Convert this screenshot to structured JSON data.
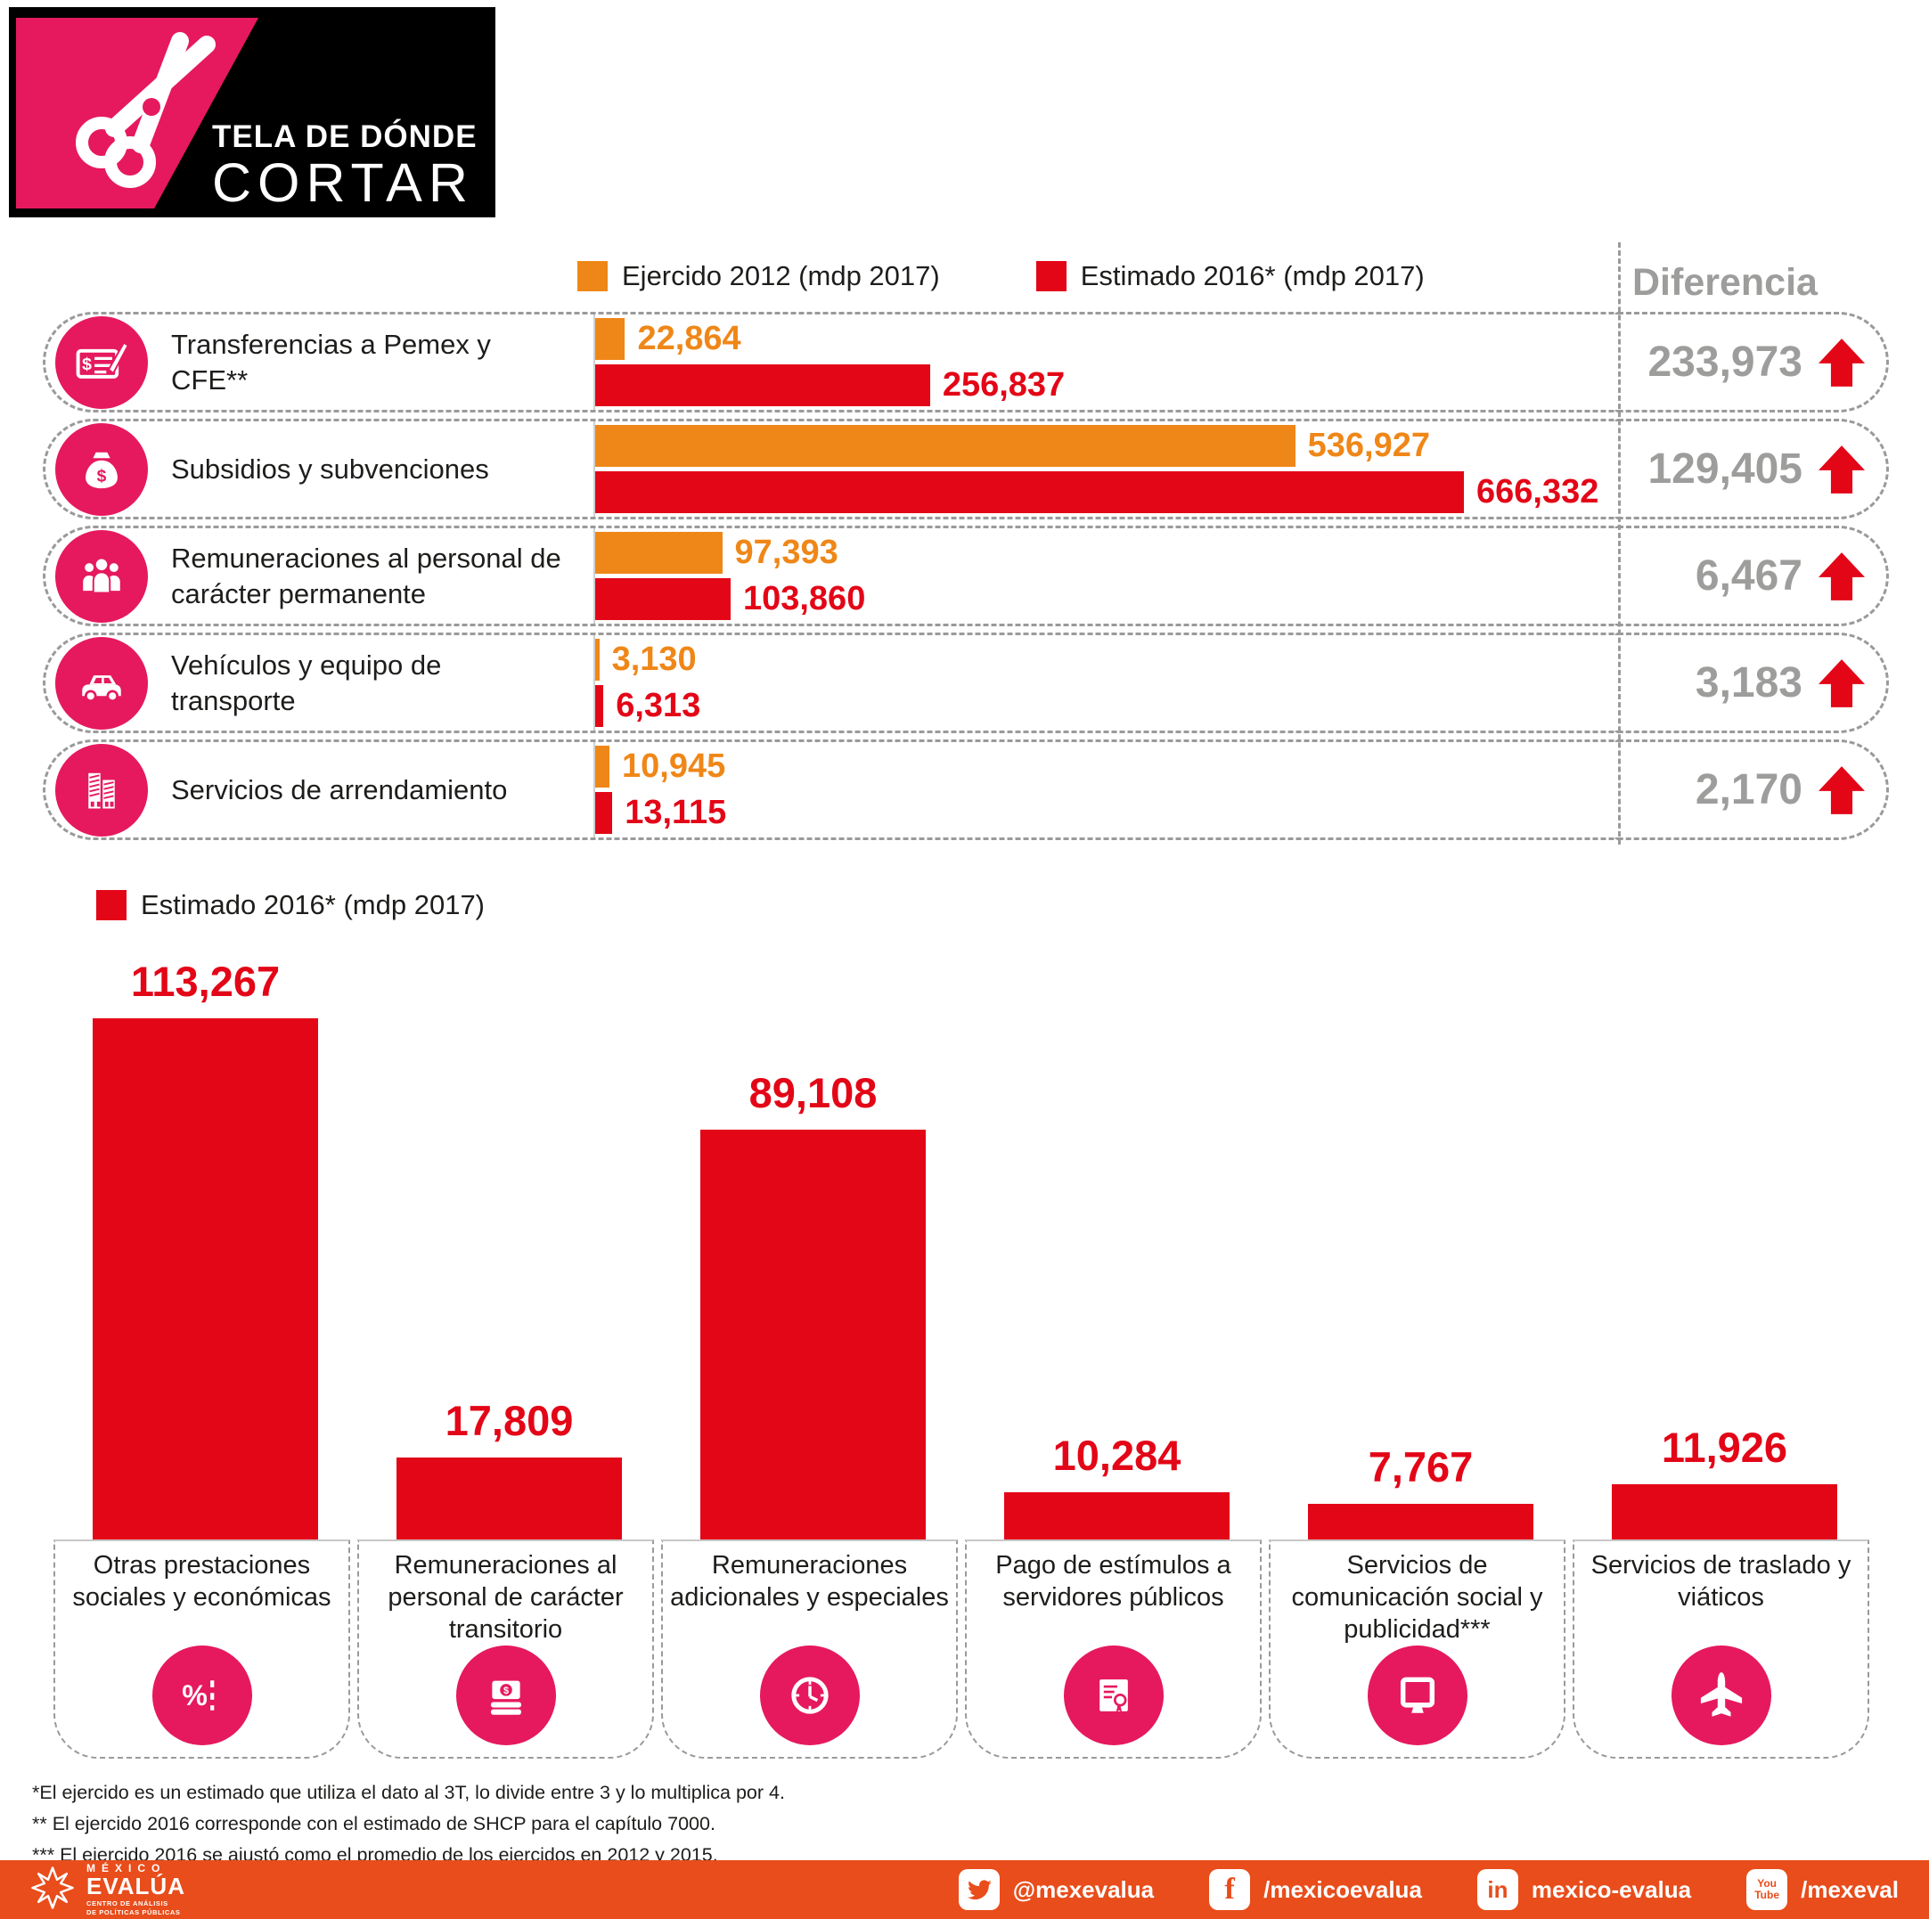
{
  "header": {
    "title_line1": "TELA DE DÓNDE",
    "title_line2": "CORTAR"
  },
  "colors": {
    "orange": "#EF8718",
    "red": "#E30617",
    "pink": "#E6195E",
    "gray_text": "#9D9D9C",
    "footer_orange": "#E84D1B",
    "logo_black": "#000000"
  },
  "top_chart": {
    "legend": [
      {
        "label": "Ejercido 2012 (mdp 2017)",
        "color": "#EF8718"
      },
      {
        "label": "Estimado 2016* (mdp 2017)",
        "color": "#E30617"
      }
    ],
    "diff_header": "Diferencia",
    "row_icons": [
      "payment-check-icon",
      "subsidy-icon",
      "personnel-icon",
      "vehicle-icon",
      "building-icon"
    ]
  },
  "bottom_chart": {
    "legend_label": "Estimado 2016* (mdp 2017)",
    "column_icons": [
      "percent-icon",
      "money-stack-icon",
      "clock-icon",
      "certificate-icon",
      "monitor-icon",
      "airplane-icon"
    ]
  },
  "footnotes": [
    "*El ejercido es un estimado que utiliza el dato al 3T, lo divide entre 3 y lo multiplica por 4.",
    "** El ejercido 2016 corresponde con el estimado de SHCP para el capítulo 7000.",
    "*** El ejercido 2016 se ajustó como el promedio de los ejercidos en 2012 y 2015."
  ],
  "footer": {
    "brand_top": "MÉXICO",
    "brand_name": "EVALÚA",
    "brand_sub1": "CENTRO DE ANÁLISIS",
    "brand_sub2": "DE POLÍTICAS PÚBLICAS",
    "social": [
      {
        "network": "twitter",
        "icon": "twitter-icon",
        "label": "@mexevalua"
      },
      {
        "network": "facebook",
        "icon": "facebook-icon",
        "label": "/mexicoevalua"
      },
      {
        "network": "linkedin",
        "icon": "linkedin-icon",
        "label": "mexico-evalua"
      },
      {
        "network": "youtube",
        "icon": "youtube-icon",
        "label": "/mexeval"
      }
    ]
  },
  "chart_data": [
    {
      "type": "bar",
      "orientation": "horizontal",
      "title": "",
      "categories": [
        "Transferencias a Pemex y CFE**",
        "Subsidios y subvenciones",
        "Remuneraciones al personal de carácter permanente",
        "Vehículos y equipo de transporte",
        "Servicios de arrendamiento"
      ],
      "series": [
        {
          "name": "Ejercido 2012 (mdp 2017)",
          "color": "#EF8718",
          "values": [
            22864,
            536927,
            97393,
            3130,
            10945
          ]
        },
        {
          "name": "Estimado 2016* (mdp 2017)",
          "color": "#E30617",
          "values": [
            256837,
            666332,
            103860,
            6313,
            13115
          ]
        }
      ],
      "diferencia": [
        233973,
        129405,
        6467,
        3183,
        2170
      ],
      "diferencia_direction": "up",
      "xlim": [
        0,
        666332
      ],
      "grid": false,
      "legend_position": "top"
    },
    {
      "type": "bar",
      "orientation": "vertical",
      "title": "",
      "categories": [
        "Otras prestaciones sociales y económicas",
        "Remuneraciones al personal de carácter transitorio",
        "Remuneraciones adicionales y especiales",
        "Pago de estímulos a servidores públicos",
        "Servicios de comunicación social y publicidad***",
        "Servicios de traslado y viáticos"
      ],
      "series": [
        {
          "name": "Estimado 2016* (mdp 2017)",
          "color": "#E30617",
          "values": [
            113267,
            17809,
            89108,
            10284,
            7767,
            11926
          ]
        }
      ],
      "ylim": [
        0,
        120000
      ],
      "grid": false,
      "legend_position": "top-left"
    }
  ]
}
